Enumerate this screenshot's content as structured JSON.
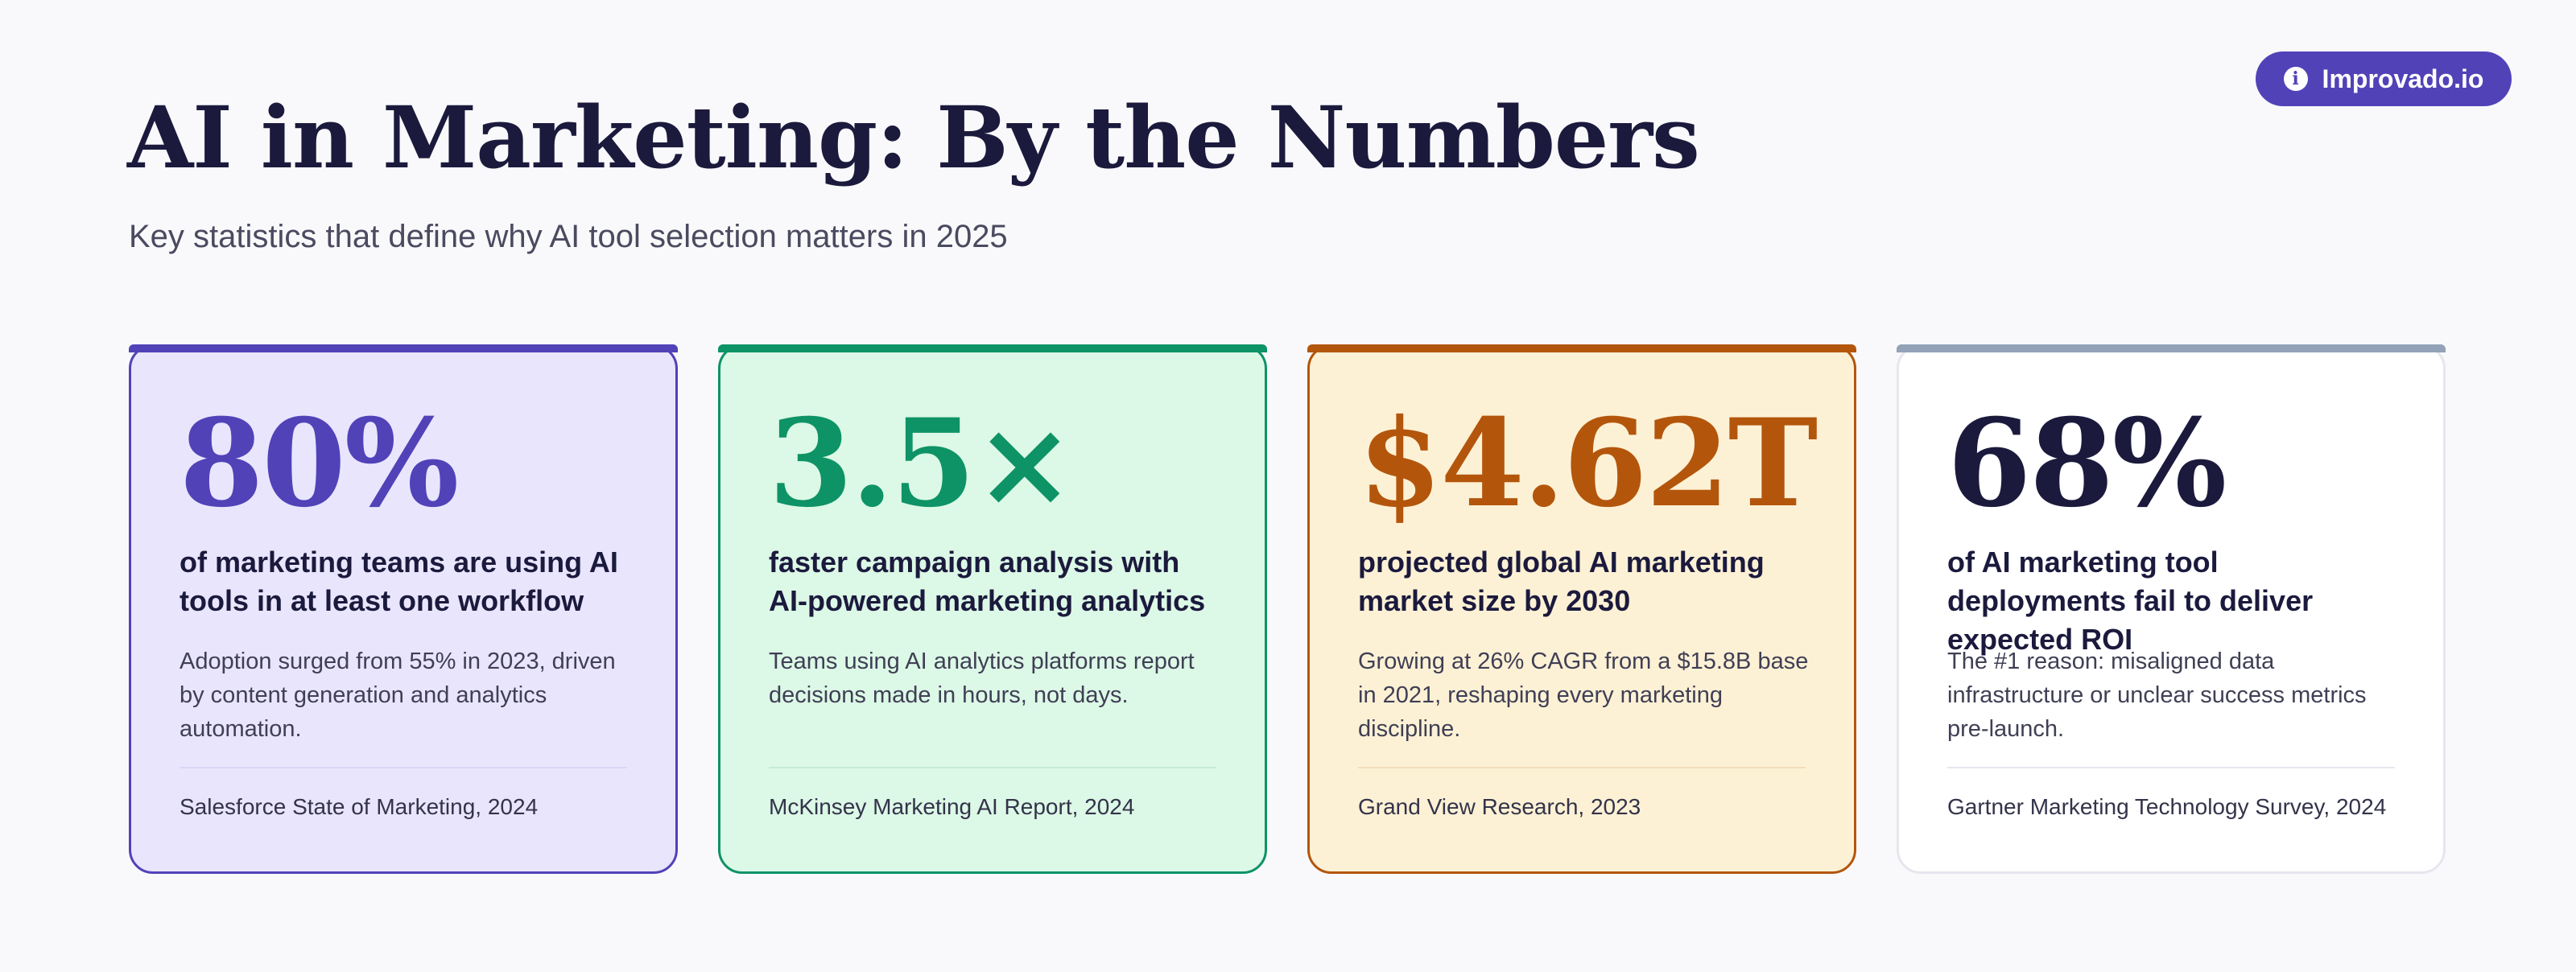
{
  "header": {
    "title": "AI in Marketing: By the Numbers",
    "subtitle": "Key statistics that define why AI tool selection matters in 2025",
    "badge": {
      "label": "Improvado.io",
      "icon": "info-icon",
      "icon_glyph": "i",
      "color": "#5142b8"
    }
  },
  "cards": [
    {
      "stat": "80%",
      "headline": "of marketing teams are using AI tools in at least one workflow",
      "description": "Adoption surged from 55% in 2023, driven by content generation and analytics automation.",
      "source": "Salesforce State of Marketing, 2024",
      "accent": "#5142b8",
      "background": "#e9e5fd"
    },
    {
      "stat": "3.5×",
      "headline": "faster campaign analysis with AI-powered marketing analytics",
      "description": "Teams using AI analytics platforms report decisions made in hours, not days.",
      "source": "McKinsey Marketing AI Report, 2024",
      "accent": "#0e9366",
      "background": "#dcf8e6"
    },
    {
      "stat": "$4.62T",
      "headline": "projected global AI marketing market size by 2030",
      "description": "Growing at 26% CAGR from a $15.8B base in 2021, reshaping every marketing discipline.",
      "source": "Grand View Research, 2023",
      "accent": "#b3560c",
      "background": "#fdf1d5"
    },
    {
      "stat": "68%",
      "headline": "of AI marketing tool deployments fail to deliver expected ROI",
      "description": "The #1 reason: misaligned data infrastructure or unclear success metrics pre-launch.",
      "source": "Gartner Marketing Technology Survey, 2024",
      "accent": "#93a2b7",
      "background": "#ffffff"
    }
  ]
}
